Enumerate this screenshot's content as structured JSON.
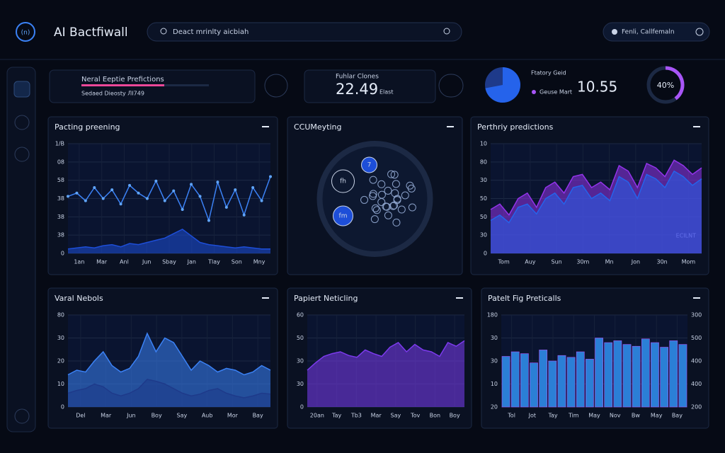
{
  "header": {
    "title": "AI Bactfiwall",
    "search": "Deact mrinlty aicbiah",
    "location": "Fenli, Callfemaln"
  },
  "stats": {
    "card1": {
      "title": "Neral Eeptie Prefictions",
      "subtitle": "Sedaed Dieosty ЛI749",
      "progress": 65
    },
    "card2": {
      "title": "Fuhlar Clones",
      "value": "22.49",
      "unit": "Elast"
    },
    "pie": {
      "legend": [
        "Ftatory Geid",
        "Geuse Mart"
      ],
      "value": "10.55",
      "share": 72
    },
    "donut": {
      "label": "40%",
      "value": 40
    }
  },
  "panels": [
    {
      "type": "line",
      "title": "Pacting preening",
      "ylim": [
        0,
        100
      ],
      "y_labels": [
        "1/B",
        "08",
        "58",
        "38",
        "38",
        "38",
        "0"
      ],
      "x_labels": [
        "1an",
        "Mar",
        "Anl",
        "Jun",
        "Sbay",
        "Jan",
        "Tlay",
        "Son",
        "Mny"
      ],
      "series": [
        {
          "color": "#3b82f6",
          "values": [
            52,
            55,
            48,
            60,
            50,
            58,
            45,
            62,
            55,
            50,
            66,
            48,
            57,
            40,
            63,
            52,
            30,
            65,
            42,
            58,
            35,
            60,
            48,
            70
          ]
        },
        {
          "color": "#1d4ed8",
          "values": [
            4,
            5,
            6,
            5,
            7,
            8,
            6,
            9,
            8,
            10,
            12,
            14,
            18,
            22,
            16,
            10,
            8,
            7,
            6,
            5,
            6,
            5,
            4,
            4
          ]
        }
      ]
    },
    {
      "type": "network",
      "title": "CCUMeyting",
      "nodes": [
        "fh",
        "7",
        "fm"
      ]
    },
    {
      "type": "area",
      "title": "Perthriy predictions",
      "ylim": [
        0,
        100
      ],
      "y_labels": [
        "10",
        "80",
        "30",
        "50",
        "50",
        "30",
        "0"
      ],
      "x_labels": [
        "Tom",
        "Auy",
        "Sun",
        "30m",
        "Mn",
        "Jon",
        "30n",
        "Mom"
      ],
      "legend": "ECILNT",
      "series": [
        {
          "color": "#9333ea",
          "values": [
            40,
            45,
            35,
            50,
            55,
            42,
            60,
            65,
            55,
            70,
            72,
            60,
            65,
            58,
            80,
            75,
            60,
            82,
            78,
            70,
            85,
            80,
            72,
            78
          ]
        },
        {
          "color": "#2563eb",
          "values": [
            30,
            35,
            28,
            42,
            45,
            36,
            50,
            55,
            45,
            60,
            62,
            50,
            55,
            48,
            70,
            65,
            50,
            72,
            68,
            60,
            75,
            70,
            62,
            68
          ]
        }
      ]
    },
    {
      "type": "area",
      "title": "Varal Nebols",
      "ylim": [
        0,
        100
      ],
      "y_labels": [
        "80",
        "30",
        "20",
        "10",
        "0"
      ],
      "x_labels": [
        "Del",
        "Mar",
        "Jun",
        "Boy",
        "Say",
        "Aub",
        "Mor",
        "Bay"
      ],
      "series": [
        {
          "color": "#3b82f6",
          "values": [
            35,
            40,
            38,
            50,
            60,
            45,
            38,
            42,
            55,
            80,
            60,
            75,
            70,
            55,
            40,
            50,
            45,
            38,
            42,
            40,
            35,
            38,
            45,
            40
          ]
        },
        {
          "color": "#1e3a8a",
          "values": [
            15,
            18,
            20,
            25,
            22,
            15,
            12,
            15,
            20,
            30,
            28,
            25,
            20,
            15,
            12,
            14,
            18,
            20,
            15,
            12,
            10,
            12,
            15,
            14
          ]
        }
      ]
    },
    {
      "type": "area",
      "title": "Papiert Neticling",
      "ylim": [
        0,
        100
      ],
      "y_labels": [
        "60",
        "50",
        "30",
        "30",
        "0"
      ],
      "x_labels": [
        "20an",
        "Tay",
        "Tb3",
        "Mar",
        "Say",
        "Tov",
        "Bon",
        "Boy"
      ],
      "series": [
        {
          "color": "#7c3aed",
          "values": [
            40,
            48,
            55,
            58,
            60,
            56,
            54,
            62,
            58,
            55,
            65,
            70,
            60,
            68,
            62,
            60,
            55,
            70,
            66,
            72
          ]
        }
      ]
    },
    {
      "type": "bars",
      "title": "Patelt Fig Preticalls",
      "ylim": [
        0,
        100
      ],
      "y_labels": [
        "180",
        "30",
        "30",
        "10",
        "20"
      ],
      "y2_labels": [
        "300",
        "500",
        "400",
        "400",
        "200"
      ],
      "x_labels": [
        "Tol",
        "Jot",
        "Tay",
        "Tim",
        "May",
        "Nov",
        "Bw",
        "May",
        "Bay"
      ],
      "series": [
        {
          "color": "#2b7fd6",
          "values": [
            55,
            60,
            58,
            48,
            62,
            50,
            56,
            54,
            60,
            52,
            75,
            70,
            72,
            68,
            66,
            74,
            70,
            65,
            72,
            68
          ]
        }
      ]
    }
  ]
}
